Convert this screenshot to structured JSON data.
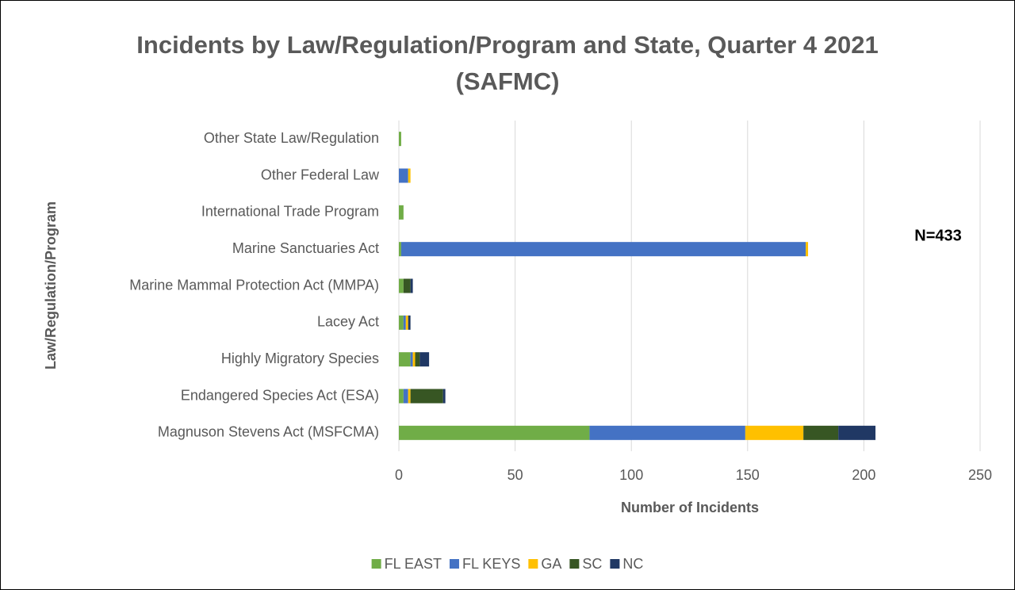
{
  "chart_data": {
    "type": "stacked_barh",
    "title": "Incidents by Law/Regulation/Program and State, Quarter 4 2021 (SAFMC)",
    "xlabel": "Number of Incidents",
    "ylabel": "Law/Regulation/Program",
    "annotation": "N=433",
    "categories": [
      "Other State Law/Regulation",
      "Other Federal Law",
      "International Trade Program",
      "Marine Sanctuaries Act",
      "Marine Mammal Protection Act (MMPA)",
      "Lacey Act",
      "Highly Migratory Species",
      "Endangered Species Act (ESA)",
      "Magnuson Stevens Act (MSFCMA)"
    ],
    "series": [
      {
        "name": "FL EAST",
        "color": "#70ad47",
        "values": [
          1,
          0,
          2,
          1,
          2,
          2,
          5,
          2,
          82
        ]
      },
      {
        "name": "FL KEYS",
        "color": "#4472c4",
        "values": [
          0,
          4,
          0,
          174,
          0,
          1,
          1,
          2,
          67
        ]
      },
      {
        "name": "GA",
        "color": "#ffc000",
        "values": [
          0,
          1,
          0,
          1,
          0,
          1,
          1,
          1,
          25
        ]
      },
      {
        "name": "SC",
        "color": "#375623",
        "values": [
          0,
          0,
          0,
          0,
          3,
          0,
          2,
          14,
          15
        ]
      },
      {
        "name": "NC",
        "color": "#203864",
        "values": [
          0,
          0,
          0,
          0,
          1,
          1,
          4,
          1,
          16
        ]
      }
    ],
    "xlim": [
      0,
      250
    ],
    "xticks": [
      0,
      50,
      100,
      150,
      200,
      250
    ],
    "grid": true,
    "legend": "bottom"
  }
}
